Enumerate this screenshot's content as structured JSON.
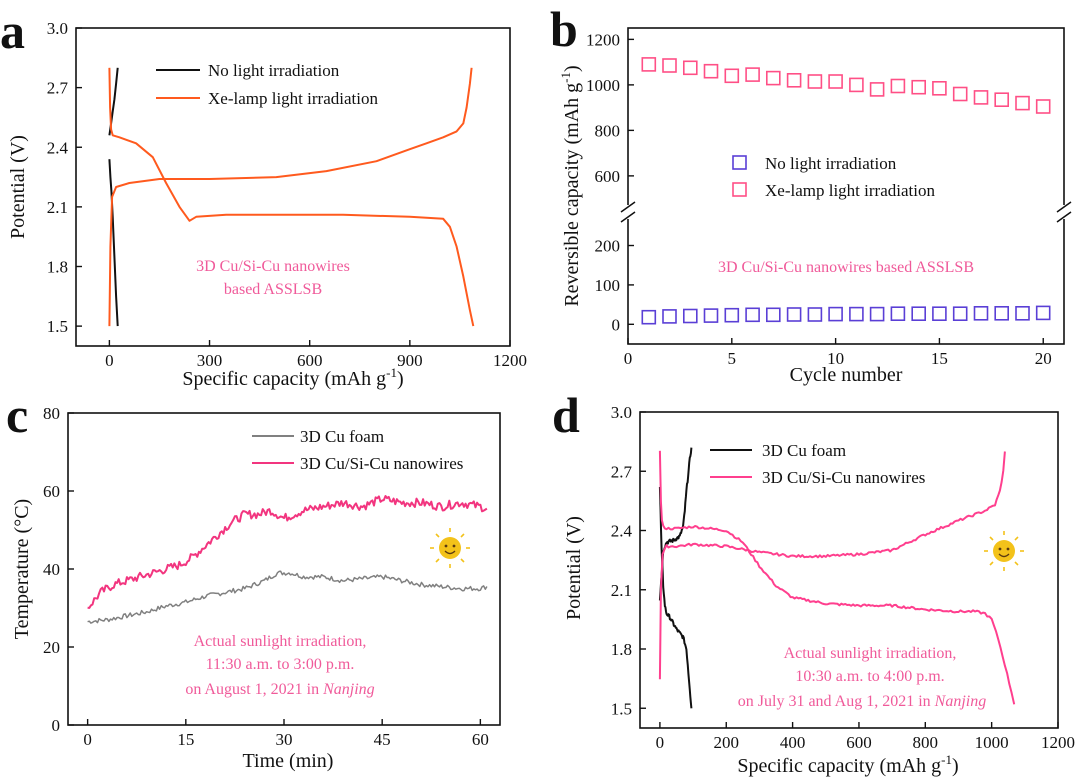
{
  "colors": {
    "black": "#111111",
    "orange": "#ff5a1e",
    "pink": "#ff3f8e",
    "magenta": "#f2357f",
    "gray": "#808080",
    "blue_marker": "#5a3fd6",
    "pink_marker": "#ff4f86",
    "annotation_pink": "#f05a9a",
    "sun": "#f3c21a"
  },
  "chart_data": [
    {
      "panel": "a",
      "type": "line",
      "xlabel": "Specific capacity (mAh g",
      "xlabel_sup": "-1",
      "xlabel_close": ")",
      "ylabel": "Potential (V)",
      "xlim": [
        -100,
        1200
      ],
      "ylim": [
        1.4,
        3.0
      ],
      "xticks": [
        0,
        300,
        600,
        900,
        1200
      ],
      "xtick_labels": [
        "0",
        "300",
        "600",
        "900",
        "1200"
      ],
      "yticks": [
        1.5,
        1.8,
        2.1,
        2.4,
        2.7,
        3.0
      ],
      "ytick_labels": [
        "1.5",
        "1.8",
        "2.1",
        "2.4",
        "2.7",
        "3.0"
      ],
      "annotation": [
        "3D Cu/Si-Cu nanowires",
        "based ASSLSB"
      ],
      "series": [
        {
          "name": "No light irradiation",
          "color": "black",
          "curves": [
            {
              "x": [
                0,
                3,
                6,
                10,
                15,
                20,
                25
              ],
              "y": [
                2.34,
                2.25,
                2.18,
                2.05,
                1.85,
                1.65,
                1.5
              ]
            },
            {
              "x": [
                0,
                5,
                10,
                15,
                20,
                25
              ],
              "y": [
                2.46,
                2.52,
                2.58,
                2.64,
                2.72,
                2.8
              ]
            }
          ]
        },
        {
          "name": "Xe-lamp light irradiation",
          "color": "orange",
          "curves": [
            {
              "x": [
                0,
                2,
                5,
                10,
                30,
                80,
                130,
                170,
                210,
                240,
                260,
                350,
                500,
                700,
                900,
                1000,
                1020,
                1040,
                1060,
                1080,
                1090
              ],
              "y": [
                2.8,
                2.6,
                2.49,
                2.46,
                2.45,
                2.42,
                2.35,
                2.22,
                2.1,
                2.03,
                2.05,
                2.06,
                2.06,
                2.06,
                2.05,
                2.04,
                2.0,
                1.9,
                1.75,
                1.58,
                1.5
              ]
            },
            {
              "x": [
                0,
                3,
                8,
                20,
                60,
                150,
                300,
                500,
                650,
                800,
                900,
                950,
                1000,
                1040,
                1060,
                1070,
                1080,
                1085
              ],
              "y": [
                1.5,
                1.9,
                2.15,
                2.2,
                2.22,
                2.24,
                2.24,
                2.25,
                2.28,
                2.33,
                2.39,
                2.42,
                2.45,
                2.48,
                2.52,
                2.6,
                2.72,
                2.8
              ]
            }
          ]
        }
      ]
    },
    {
      "panel": "b",
      "type": "scatter",
      "xlabel": "Cycle number",
      "ylabel": "Reversible capacity (mAh g",
      "ylabel_sup": "-1",
      "ylabel_close": ")",
      "xlim": [
        0,
        21
      ],
      "xticks": [
        0,
        5,
        10,
        15,
        20
      ],
      "xtick_labels": [
        "0",
        "5",
        "10",
        "15",
        "20"
      ],
      "ylim_lower": [
        -50,
        280
      ],
      "ylim_upper": [
        450,
        1250
      ],
      "yticks_lower": [
        0,
        100,
        200
      ],
      "ytick_labels_lower": [
        "0",
        "100",
        "200"
      ],
      "yticks_upper": [
        600,
        800,
        1000,
        1200
      ],
      "ytick_labels_upper": [
        "600",
        "800",
        "1000",
        "1200"
      ],
      "annotation": "3D Cu/Si-Cu nanowires based ASSLSB",
      "x": [
        1,
        2,
        3,
        4,
        5,
        6,
        7,
        8,
        9,
        10,
        11,
        12,
        13,
        14,
        15,
        16,
        17,
        18,
        19,
        20
      ],
      "series": [
        {
          "name": "No light irradiation",
          "color": "blue_marker",
          "values": [
            18,
            20,
            21,
            22,
            23,
            24,
            24,
            25,
            25,
            26,
            26,
            26,
            27,
            27,
            27,
            27,
            28,
            28,
            28,
            29
          ]
        },
        {
          "name": "Xe-lamp light irradiation",
          "color": "pink_marker",
          "values": [
            1090,
            1085,
            1075,
            1060,
            1040,
            1045,
            1030,
            1020,
            1015,
            1015,
            1000,
            980,
            995,
            990,
            985,
            960,
            945,
            935,
            920,
            905
          ]
        }
      ]
    },
    {
      "panel": "c",
      "type": "line",
      "xlabel": "Time (min)",
      "ylabel": "Temperature (°C)",
      "xlim": [
        -3,
        63
      ],
      "ylim": [
        0,
        80
      ],
      "xticks": [
        0,
        15,
        30,
        45,
        60
      ],
      "xtick_labels": [
        "0",
        "15",
        "30",
        "45",
        "60"
      ],
      "yticks": [
        0,
        20,
        40,
        60,
        80
      ],
      "ytick_labels": [
        "0",
        "20",
        "40",
        "60",
        "80"
      ],
      "annotation": [
        "Actual sunlight irradiation,",
        "11:30 a.m. to 3:00 p.m.",
        "on August 1, 2021 in "
      ],
      "annotation_italic": "Nanjing",
      "series": [
        {
          "name": "3D Cu foam",
          "color": "gray",
          "x": [
            0,
            3,
            6,
            9,
            12,
            15,
            18,
            21,
            24,
            27,
            29,
            31,
            33,
            36,
            39,
            42,
            45,
            48,
            51,
            54,
            57,
            60,
            61
          ],
          "y": [
            26.5,
            27,
            28,
            29,
            30.5,
            31.5,
            33,
            34,
            35,
            37,
            39,
            39,
            38,
            38,
            37,
            37.5,
            38,
            37,
            36,
            35.5,
            35,
            35,
            35.5
          ]
        },
        {
          "name": "3D Cu/Si-Cu nanowires",
          "color": "magenta",
          "x": [
            0,
            2,
            4,
            6,
            8,
            10,
            12,
            14,
            16,
            18,
            20,
            22,
            24,
            26,
            28,
            30,
            33,
            36,
            39,
            42,
            45,
            48,
            51,
            54,
            57,
            60,
            61
          ],
          "y": [
            30,
            34,
            36,
            37,
            38,
            39,
            40,
            41,
            43,
            46,
            49,
            52,
            54,
            54,
            55,
            53,
            55,
            56,
            57,
            56,
            58,
            57,
            57,
            56,
            57,
            56,
            55.5
          ]
        }
      ]
    },
    {
      "panel": "d",
      "type": "line",
      "xlabel": "Specific capacity (mAh g",
      "xlabel_sup": "-1",
      "xlabel_close": ")",
      "ylabel": "Potential (V)",
      "xlim": [
        -60,
        1200
      ],
      "ylim": [
        1.4,
        3.0
      ],
      "xticks": [
        0,
        200,
        400,
        600,
        800,
        1000,
        1200
      ],
      "xtick_labels": [
        "0",
        "200",
        "400",
        "600",
        "800",
        "1000",
        "1200"
      ],
      "yticks": [
        1.5,
        1.8,
        2.1,
        2.4,
        2.7,
        3.0
      ],
      "ytick_labels": [
        "1.5",
        "1.8",
        "2.1",
        "2.4",
        "2.7",
        "3.0"
      ],
      "annotation": [
        "Actual sunlight irradiation,",
        "10:30 a.m. to 4:00 p.m.",
        "on July 31 and Aug 1, 2021 in "
      ],
      "annotation_italic": "Nanjing",
      "series": [
        {
          "name": "3D Cu foam",
          "color": "black",
          "curves": [
            {
              "x": [
                0,
                5,
                10,
                15,
                20,
                30,
                40,
                50,
                60,
                70,
                80,
                90,
                95
              ],
              "y": [
                2.62,
                2.3,
                2.12,
                2.02,
                1.98,
                1.96,
                1.93,
                1.9,
                1.88,
                1.86,
                1.8,
                1.6,
                1.5
              ]
            },
            {
              "x": [
                0,
                10,
                20,
                40,
                60,
                70,
                75,
                80,
                85,
                90,
                95
              ],
              "y": [
                2.05,
                2.3,
                2.34,
                2.35,
                2.37,
                2.42,
                2.5,
                2.6,
                2.68,
                2.76,
                2.82
              ]
            }
          ]
        },
        {
          "name": "3D Cu/Si-Cu nanowires",
          "color": "pink",
          "curves": [
            {
              "x": [
                0,
                3,
                6,
                10,
                20,
                50,
                100,
                200,
                250,
                300,
                350,
                400,
                500,
                600,
                700,
                800,
                900,
                950,
                980,
                1000,
                1020,
                1040,
                1060,
                1068
              ],
              "y": [
                2.8,
                2.55,
                2.45,
                2.42,
                2.41,
                2.41,
                2.42,
                2.4,
                2.34,
                2.22,
                2.12,
                2.06,
                2.03,
                2.02,
                2.02,
                2.0,
                1.99,
                1.99,
                1.98,
                1.95,
                1.85,
                1.72,
                1.58,
                1.52
              ]
            },
            {
              "x": [
                0,
                3,
                8,
                20,
                50,
                100,
                200,
                300,
                400,
                500,
                600,
                700,
                800,
                900,
                980,
                1010,
                1025,
                1035,
                1040
              ],
              "y": [
                1.65,
                2.1,
                2.28,
                2.32,
                2.32,
                2.33,
                2.32,
                2.29,
                2.27,
                2.27,
                2.28,
                2.3,
                2.38,
                2.45,
                2.5,
                2.53,
                2.6,
                2.7,
                2.8
              ]
            }
          ]
        }
      ]
    }
  ]
}
